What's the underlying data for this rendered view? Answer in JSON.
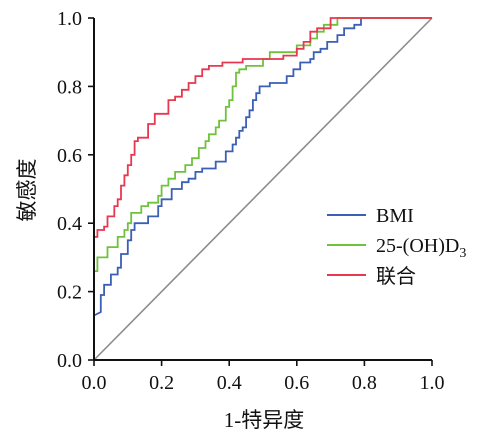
{
  "chart_data": {
    "type": "line",
    "title": "",
    "xlabel": "1-特异度",
    "ylabel": "敏感度",
    "xlim": [
      0,
      1
    ],
    "ylim": [
      0,
      1
    ],
    "x_ticks": [
      "0.0",
      "0.2",
      "0.4",
      "0.6",
      "0.8",
      "1.0"
    ],
    "y_ticks": [
      "0.0",
      "0.2",
      "0.4",
      "0.6",
      "0.8",
      "1.0"
    ],
    "grid": false,
    "legend_position": "lower-right",
    "reference_line": {
      "points": [
        [
          0,
          0
        ],
        [
          1,
          1
        ]
      ],
      "color": "#8c8c8c"
    },
    "series": [
      {
        "name": "BMI",
        "label_main": "BMI",
        "label_sub": "",
        "color": "#3b5fb5",
        "points": [
          [
            0,
            0
          ],
          [
            0,
            0.13
          ],
          [
            0.02,
            0.14
          ],
          [
            0.02,
            0.19
          ],
          [
            0.03,
            0.19
          ],
          [
            0.03,
            0.22
          ],
          [
            0.05,
            0.22
          ],
          [
            0.05,
            0.25
          ],
          [
            0.07,
            0.25
          ],
          [
            0.07,
            0.27
          ],
          [
            0.08,
            0.27
          ],
          [
            0.08,
            0.31
          ],
          [
            0.1,
            0.31
          ],
          [
            0.1,
            0.35
          ],
          [
            0.11,
            0.35
          ],
          [
            0.11,
            0.38
          ],
          [
            0.12,
            0.38
          ],
          [
            0.12,
            0.4
          ],
          [
            0.16,
            0.4
          ],
          [
            0.16,
            0.42
          ],
          [
            0.19,
            0.42
          ],
          [
            0.19,
            0.45
          ],
          [
            0.2,
            0.45
          ],
          [
            0.2,
            0.47
          ],
          [
            0.23,
            0.47
          ],
          [
            0.23,
            0.5
          ],
          [
            0.26,
            0.5
          ],
          [
            0.26,
            0.52
          ],
          [
            0.28,
            0.52
          ],
          [
            0.28,
            0.53
          ],
          [
            0.3,
            0.53
          ],
          [
            0.3,
            0.55
          ],
          [
            0.32,
            0.55
          ],
          [
            0.32,
            0.56
          ],
          [
            0.36,
            0.56
          ],
          [
            0.36,
            0.58
          ],
          [
            0.39,
            0.58
          ],
          [
            0.39,
            0.61
          ],
          [
            0.41,
            0.61
          ],
          [
            0.41,
            0.63
          ],
          [
            0.42,
            0.63
          ],
          [
            0.42,
            0.65
          ],
          [
            0.43,
            0.65
          ],
          [
            0.43,
            0.67
          ],
          [
            0.44,
            0.67
          ],
          [
            0.44,
            0.68
          ],
          [
            0.45,
            0.68
          ],
          [
            0.45,
            0.71
          ],
          [
            0.46,
            0.71
          ],
          [
            0.46,
            0.73
          ],
          [
            0.47,
            0.73
          ],
          [
            0.47,
            0.76
          ],
          [
            0.48,
            0.76
          ],
          [
            0.48,
            0.78
          ],
          [
            0.49,
            0.78
          ],
          [
            0.49,
            0.8
          ],
          [
            0.52,
            0.8
          ],
          [
            0.52,
            0.81
          ],
          [
            0.57,
            0.81
          ],
          [
            0.57,
            0.83
          ],
          [
            0.59,
            0.83
          ],
          [
            0.59,
            0.85
          ],
          [
            0.61,
            0.85
          ],
          [
            0.61,
            0.87
          ],
          [
            0.64,
            0.87
          ],
          [
            0.64,
            0.88
          ],
          [
            0.65,
            0.88
          ],
          [
            0.65,
            0.9
          ],
          [
            0.67,
            0.9
          ],
          [
            0.67,
            0.91
          ],
          [
            0.69,
            0.91
          ],
          [
            0.69,
            0.93
          ],
          [
            0.72,
            0.93
          ],
          [
            0.72,
            0.95
          ],
          [
            0.74,
            0.95
          ],
          [
            0.74,
            0.97
          ],
          [
            0.77,
            0.97
          ],
          [
            0.77,
            0.98
          ],
          [
            0.79,
            0.98
          ],
          [
            0.79,
            1.0
          ],
          [
            1.0,
            1.0
          ]
        ]
      },
      {
        "name": "25-(OH)D3",
        "label_main": "25-(OH)D",
        "label_sub": "3",
        "color": "#6fc23b",
        "points": [
          [
            0,
            0
          ],
          [
            0,
            0.26
          ],
          [
            0.01,
            0.26
          ],
          [
            0.01,
            0.3
          ],
          [
            0.04,
            0.3
          ],
          [
            0.04,
            0.33
          ],
          [
            0.07,
            0.33
          ],
          [
            0.07,
            0.36
          ],
          [
            0.09,
            0.36
          ],
          [
            0.09,
            0.38
          ],
          [
            0.1,
            0.38
          ],
          [
            0.1,
            0.4
          ],
          [
            0.11,
            0.4
          ],
          [
            0.11,
            0.43
          ],
          [
            0.14,
            0.43
          ],
          [
            0.14,
            0.45
          ],
          [
            0.16,
            0.45
          ],
          [
            0.16,
            0.46
          ],
          [
            0.19,
            0.46
          ],
          [
            0.19,
            0.48
          ],
          [
            0.2,
            0.48
          ],
          [
            0.2,
            0.51
          ],
          [
            0.22,
            0.51
          ],
          [
            0.22,
            0.53
          ],
          [
            0.24,
            0.53
          ],
          [
            0.24,
            0.55
          ],
          [
            0.27,
            0.55
          ],
          [
            0.27,
            0.57
          ],
          [
            0.29,
            0.57
          ],
          [
            0.29,
            0.59
          ],
          [
            0.31,
            0.59
          ],
          [
            0.31,
            0.62
          ],
          [
            0.33,
            0.62
          ],
          [
            0.33,
            0.64
          ],
          [
            0.34,
            0.64
          ],
          [
            0.34,
            0.66
          ],
          [
            0.36,
            0.66
          ],
          [
            0.36,
            0.68
          ],
          [
            0.37,
            0.68
          ],
          [
            0.37,
            0.7
          ],
          [
            0.39,
            0.7
          ],
          [
            0.39,
            0.74
          ],
          [
            0.4,
            0.74
          ],
          [
            0.4,
            0.76
          ],
          [
            0.41,
            0.76
          ],
          [
            0.41,
            0.8
          ],
          [
            0.42,
            0.8
          ],
          [
            0.42,
            0.84
          ],
          [
            0.43,
            0.84
          ],
          [
            0.43,
            0.85
          ],
          [
            0.45,
            0.85
          ],
          [
            0.45,
            0.86
          ],
          [
            0.5,
            0.86
          ],
          [
            0.5,
            0.88
          ],
          [
            0.52,
            0.88
          ],
          [
            0.52,
            0.9
          ],
          [
            0.6,
            0.9
          ],
          [
            0.6,
            0.92
          ],
          [
            0.64,
            0.92
          ],
          [
            0.64,
            0.94
          ],
          [
            0.66,
            0.94
          ],
          [
            0.66,
            0.96
          ],
          [
            0.68,
            0.96
          ],
          [
            0.68,
            0.98
          ],
          [
            0.72,
            0.98
          ],
          [
            0.72,
            1.0
          ],
          [
            1.0,
            1.0
          ]
        ]
      },
      {
        "name": "联合",
        "label_main": "联合",
        "label_sub": "",
        "color": "#e8384f",
        "points": [
          [
            0,
            0
          ],
          [
            0,
            0.36
          ],
          [
            0.01,
            0.36
          ],
          [
            0.01,
            0.38
          ],
          [
            0.03,
            0.38
          ],
          [
            0.03,
            0.39
          ],
          [
            0.04,
            0.39
          ],
          [
            0.04,
            0.42
          ],
          [
            0.06,
            0.42
          ],
          [
            0.06,
            0.45
          ],
          [
            0.07,
            0.45
          ],
          [
            0.07,
            0.47
          ],
          [
            0.08,
            0.47
          ],
          [
            0.08,
            0.51
          ],
          [
            0.09,
            0.51
          ],
          [
            0.09,
            0.54
          ],
          [
            0.1,
            0.54
          ],
          [
            0.1,
            0.57
          ],
          [
            0.11,
            0.57
          ],
          [
            0.11,
            0.6
          ],
          [
            0.12,
            0.6
          ],
          [
            0.12,
            0.64
          ],
          [
            0.13,
            0.64
          ],
          [
            0.13,
            0.65
          ],
          [
            0.16,
            0.65
          ],
          [
            0.16,
            0.69
          ],
          [
            0.18,
            0.69
          ],
          [
            0.18,
            0.72
          ],
          [
            0.22,
            0.72
          ],
          [
            0.22,
            0.76
          ],
          [
            0.24,
            0.76
          ],
          [
            0.24,
            0.77
          ],
          [
            0.26,
            0.77
          ],
          [
            0.26,
            0.79
          ],
          [
            0.28,
            0.79
          ],
          [
            0.28,
            0.81
          ],
          [
            0.3,
            0.81
          ],
          [
            0.3,
            0.83
          ],
          [
            0.32,
            0.83
          ],
          [
            0.32,
            0.85
          ],
          [
            0.34,
            0.85
          ],
          [
            0.34,
            0.86
          ],
          [
            0.38,
            0.86
          ],
          [
            0.38,
            0.87
          ],
          [
            0.44,
            0.87
          ],
          [
            0.44,
            0.88
          ],
          [
            0.56,
            0.88
          ],
          [
            0.56,
            0.89
          ],
          [
            0.6,
            0.89
          ],
          [
            0.6,
            0.91
          ],
          [
            0.62,
            0.91
          ],
          [
            0.62,
            0.93
          ],
          [
            0.64,
            0.93
          ],
          [
            0.64,
            0.96
          ],
          [
            0.66,
            0.96
          ],
          [
            0.66,
            0.97
          ],
          [
            0.7,
            0.97
          ],
          [
            0.7,
            1.0
          ],
          [
            1.0,
            1.0
          ]
        ]
      }
    ]
  }
}
